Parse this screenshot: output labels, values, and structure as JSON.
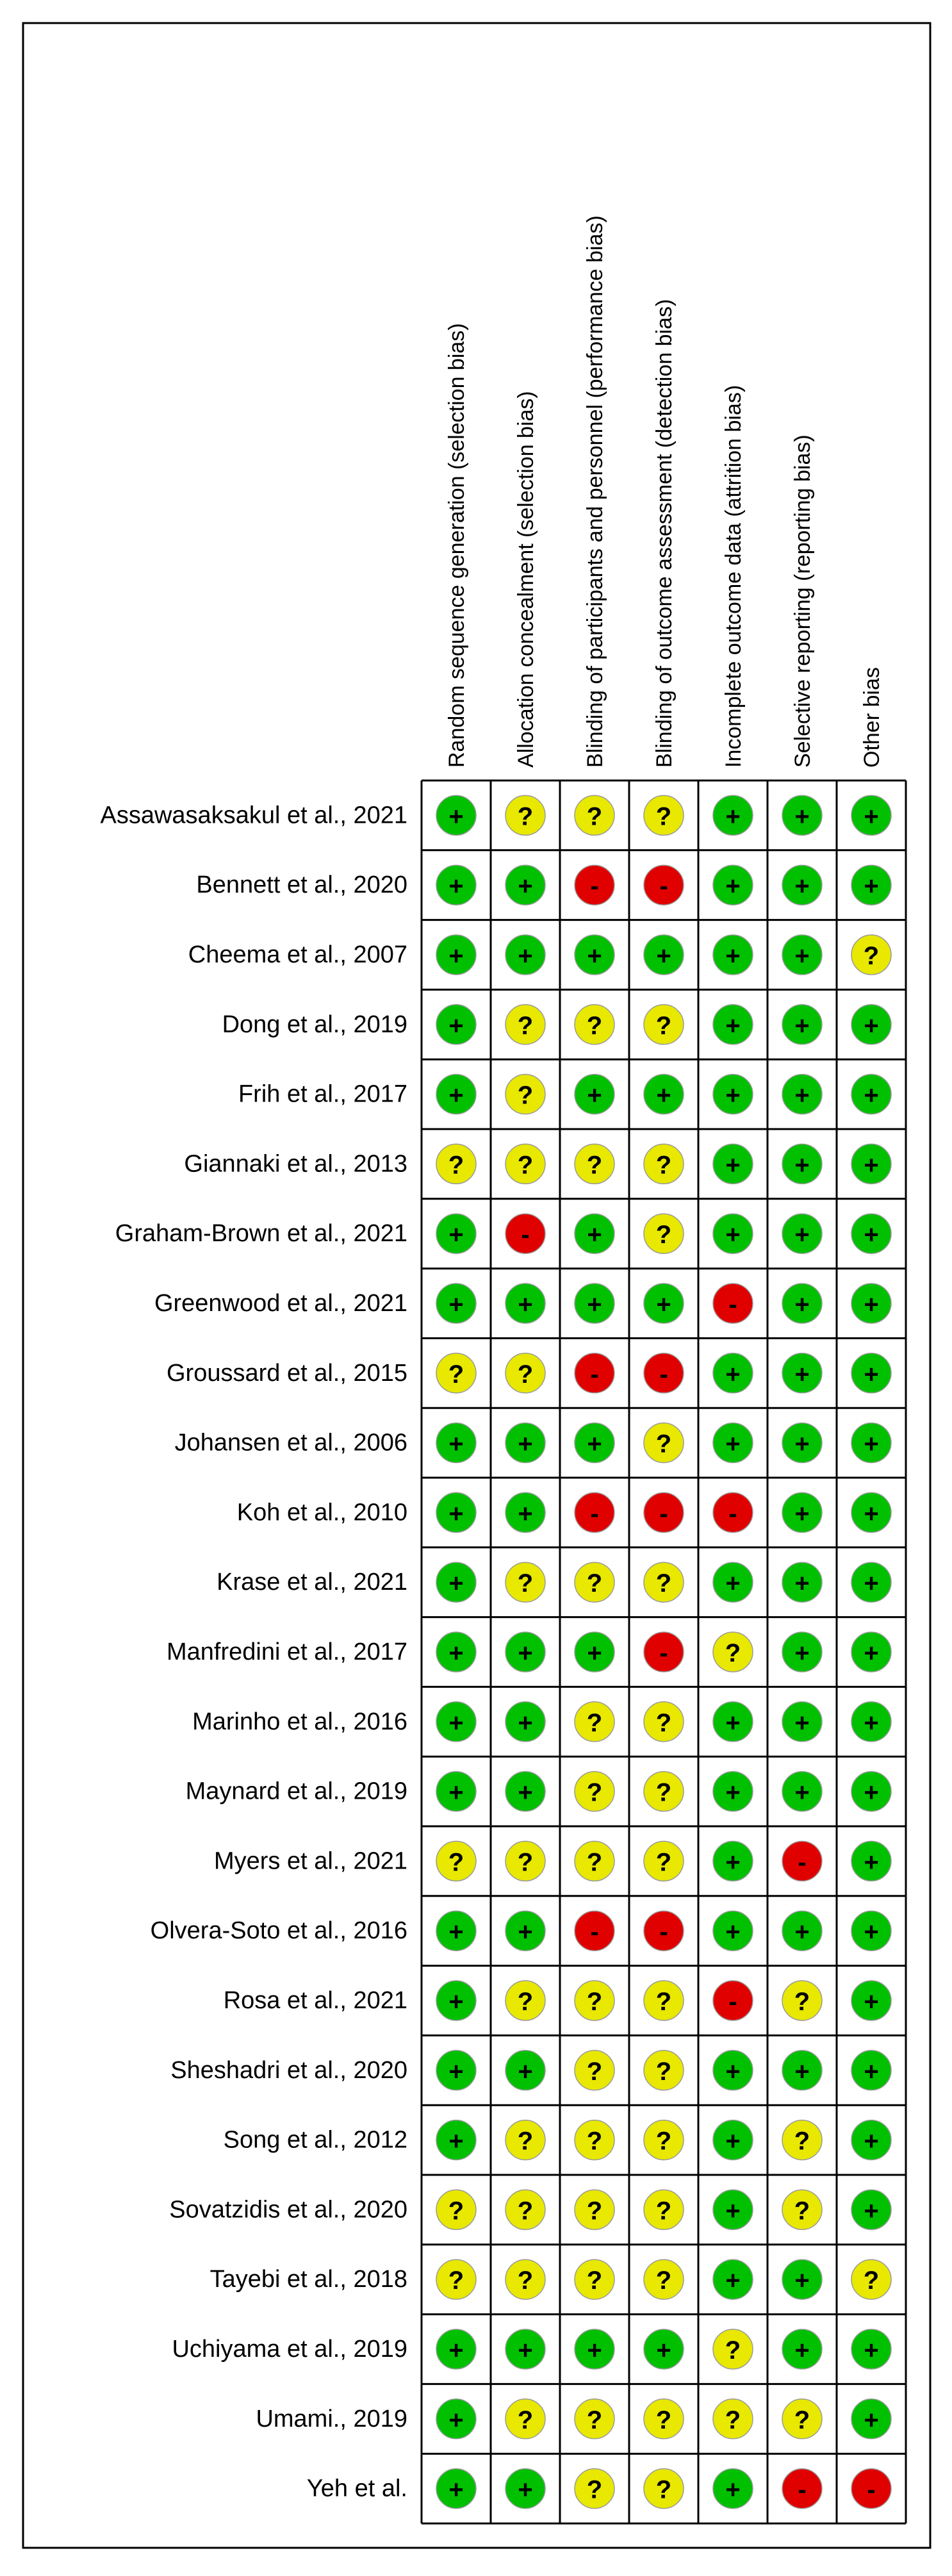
{
  "chart_data": {
    "type": "table",
    "columns": [
      "Random sequence generation (selection bias)",
      "Allocation concealment (selection bias)",
      "Blinding of participants and personnel (performance bias)",
      "Blinding of outcome assessment (detection bias)",
      "Incomplete outcome data (attrition bias)",
      "Selective reporting (reporting bias)",
      "Other bias"
    ],
    "studies": [
      "Assawasaksakul et al., 2021",
      "Bennett et al., 2020",
      "Cheema et al., 2007",
      "Dong et al., 2019",
      "Frih et al., 2017",
      "Giannaki et al., 2013",
      "Graham-Brown et al., 2021",
      "Greenwood et al., 2021",
      "Groussard et al., 2015",
      "Johansen et al., 2006",
      "Koh et al., 2010",
      "Krase et al., 2021",
      "Manfredini et al., 2017",
      "Marinho et al., 2016",
      "Maynard et al., 2019",
      "Myers et al., 2021",
      "Olvera-Soto et al., 2016",
      "Rosa et al., 2021",
      "Sheshadri et al., 2020",
      "Song et al., 2012",
      "Sovatzidis et al., 2020",
      "Tayebi et al., 2018",
      "Uchiyama et al., 2019",
      "Umami., 2019",
      "Yeh et al."
    ],
    "judgements": [
      [
        "+",
        "?",
        "?",
        "?",
        "+",
        "+",
        "+"
      ],
      [
        "+",
        "+",
        "-",
        "-",
        "+",
        "+",
        "+"
      ],
      [
        "+",
        "+",
        "+",
        "+",
        "+",
        "+",
        "?"
      ],
      [
        "+",
        "?",
        "?",
        "?",
        "+",
        "+",
        "+"
      ],
      [
        "+",
        "?",
        "+",
        "+",
        "+",
        "+",
        "+"
      ],
      [
        "?",
        "?",
        "?",
        "?",
        "+",
        "+",
        "+"
      ],
      [
        "+",
        "-",
        "+",
        "?",
        "+",
        "+",
        "+"
      ],
      [
        "+",
        "+",
        "+",
        "+",
        "-",
        "+",
        "+"
      ],
      [
        "?",
        "?",
        "-",
        "-",
        "+",
        "+",
        "+"
      ],
      [
        "+",
        "+",
        "+",
        "?",
        "+",
        "+",
        "+"
      ],
      [
        "+",
        "+",
        "-",
        "-",
        "-",
        "+",
        "+"
      ],
      [
        "+",
        "?",
        "?",
        "?",
        "+",
        "+",
        "+"
      ],
      [
        "+",
        "+",
        "+",
        "-",
        "?",
        "+",
        "+"
      ],
      [
        "+",
        "+",
        "?",
        "?",
        "+",
        "+",
        "+"
      ],
      [
        "+",
        "+",
        "?",
        "?",
        "+",
        "+",
        "+"
      ],
      [
        "?",
        "?",
        "?",
        "?",
        "+",
        "-",
        "+"
      ],
      [
        "+",
        "+",
        "-",
        "-",
        "+",
        "+",
        "+"
      ],
      [
        "+",
        "?",
        "?",
        "?",
        "-",
        "?",
        "+"
      ],
      [
        "+",
        "+",
        "?",
        "?",
        "+",
        "+",
        "+"
      ],
      [
        "+",
        "?",
        "?",
        "?",
        "+",
        "?",
        "+"
      ],
      [
        "?",
        "?",
        "?",
        "?",
        "+",
        "?",
        "+"
      ],
      [
        "?",
        "?",
        "?",
        "?",
        "+",
        "+",
        "?"
      ],
      [
        "+",
        "+",
        "+",
        "+",
        "?",
        "+",
        "+"
      ],
      [
        "+",
        "?",
        "?",
        "?",
        "?",
        "?",
        "+"
      ],
      [
        "+",
        "+",
        "?",
        "?",
        "+",
        "-",
        "-"
      ]
    ],
    "symbols": {
      "low": "+",
      "unclear": "?",
      "high": "-"
    },
    "colors": {
      "low": "#00c000",
      "unclear": "#e8e800",
      "high": "#e00000"
    }
  }
}
